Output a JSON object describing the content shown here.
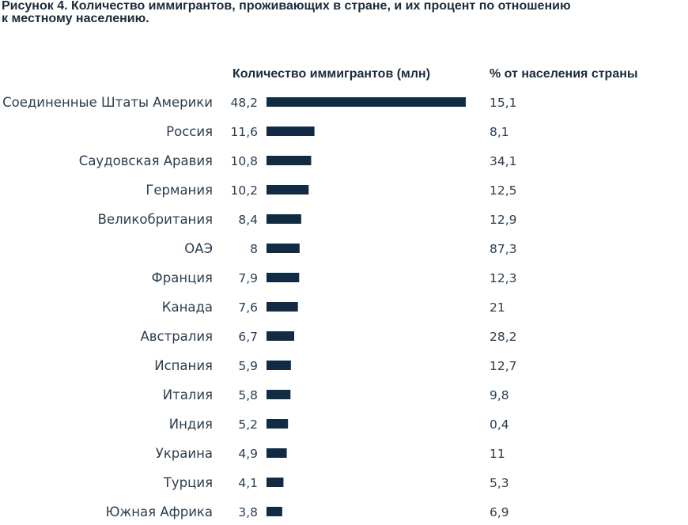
{
  "figure": {
    "title_line1": "Рисунок 4. Количество иммигрантов, проживающих в стране, и их процент по отношению",
    "title_line2": "к местному населению."
  },
  "chart_data": {
    "type": "bar",
    "orientation": "horizontal",
    "headers": {
      "values": "Количество иммигрантов (млн)",
      "percent": "% от населения страны"
    },
    "categories": [
      "Соединенные Штаты Америки",
      "Россия",
      "Саудовская Аравия",
      "Германия",
      "Великобритания",
      "ОАЭ",
      "Франция",
      "Канада",
      "Австралия",
      "Испания",
      "Италия",
      "Индия",
      "Украина",
      "Турция",
      "Южная Африка"
    ],
    "value_labels": [
      "48,2",
      "11,6",
      "10,8",
      "10,2",
      "8,4",
      "8",
      "7,9",
      "7,6",
      "6,7",
      "5,9",
      "5,8",
      "5,2",
      "4,9",
      "4,1",
      "3,8"
    ],
    "values": [
      48.2,
      11.6,
      10.8,
      10.2,
      8.4,
      8,
      7.9,
      7.6,
      6.7,
      5.9,
      5.8,
      5.2,
      4.9,
      4.1,
      3.8
    ],
    "percent_labels": [
      "15,1",
      "8,1",
      "34,1",
      "12,5",
      "12,9",
      "87,3",
      "12,3",
      "21",
      "28,2",
      "12,7",
      "9,8",
      "0,4",
      "11",
      "5,3",
      "6,9"
    ],
    "percent": [
      15.1,
      8.1,
      34.1,
      12.5,
      12.9,
      87.3,
      12.3,
      21,
      28.2,
      12.7,
      9.8,
      0.4,
      11,
      5.3,
      6.9
    ],
    "bar_color": "#122b44",
    "grid": false,
    "legend": "none"
  }
}
